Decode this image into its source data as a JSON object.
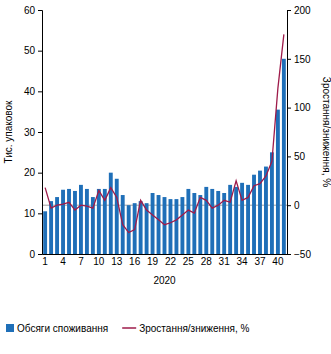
{
  "chart_data": {
    "type": "bar",
    "categories": [
      "1",
      null,
      null,
      "4",
      null,
      null,
      "7",
      null,
      null,
      "10",
      null,
      null,
      "13",
      null,
      null,
      "16",
      null,
      null,
      "19",
      null,
      null,
      "22",
      null,
      null,
      "25",
      null,
      null,
      "28",
      null,
      null,
      "31",
      null,
      null,
      "34",
      null,
      null,
      "37",
      null,
      null,
      "40",
      null
    ],
    "x_label": "2020",
    "y_label": "Тис. упаковок",
    "y2_label": "Зростання/зниження, %",
    "ylim": [
      0,
      60
    ],
    "yticks": [
      0,
      10,
      20,
      30,
      40,
      50,
      60
    ],
    "y2lim": [
      -50,
      200
    ],
    "y2ticks": [
      -50,
      0,
      50,
      100,
      150,
      200
    ],
    "legend": "bottom",
    "series": [
      {
        "name": "Обсяги споживання",
        "type": "bar",
        "color": "#1f6fb8",
        "values": [
          10.5,
          13,
          14,
          15.8,
          16,
          15.5,
          17,
          16,
          14,
          16,
          16,
          20,
          18.5,
          14.5,
          12,
          12.5,
          13,
          12.5,
          15,
          14.5,
          14,
          13.5,
          13.5,
          14,
          16,
          15,
          14.5,
          16.5,
          16,
          15.5,
          15,
          17,
          16.5,
          17.5,
          17,
          19.5,
          20.5,
          21.5,
          25,
          35.5,
          48
        ]
      },
      {
        "name": "Зростання/зниження, %",
        "type": "line",
        "color": "#9e1b4a",
        "axis": "y2",
        "values": [
          18,
          -3,
          0,
          1,
          3,
          -5,
          0,
          -1,
          -3,
          15,
          5,
          18,
          8,
          -20,
          -28,
          -25,
          5,
          -5,
          -10,
          -15,
          -20,
          -18,
          -15,
          -10,
          -5,
          -8,
          8,
          5,
          -3,
          0,
          5,
          3,
          25,
          5,
          8,
          20,
          22,
          30,
          45,
          120,
          175
        ]
      }
    ]
  }
}
